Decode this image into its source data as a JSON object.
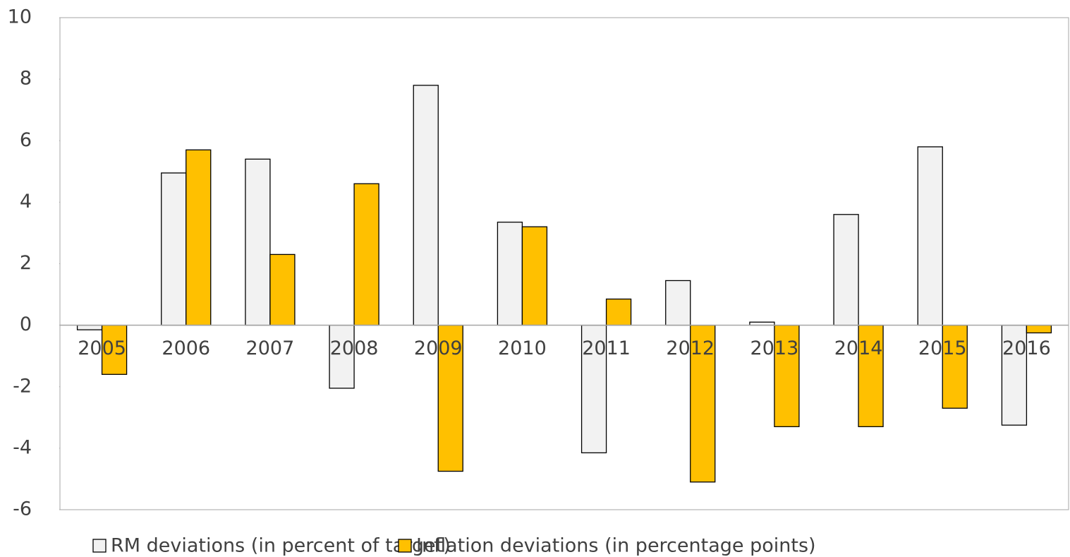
{
  "chart_data": {
    "type": "bar",
    "categories": [
      "2005",
      "2006",
      "2007",
      "2008",
      "2009",
      "2010",
      "2011",
      "2012",
      "2013",
      "2014",
      "2015",
      "2016"
    ],
    "series": [
      {
        "name": "RM deviations (in percent of target)",
        "color": "#f2f2f2",
        "values": [
          -0.15,
          4.95,
          5.4,
          -2.05,
          7.8,
          3.35,
          -4.15,
          1.45,
          0.1,
          3.6,
          5.8,
          -3.25
        ]
      },
      {
        "name": "Inflation deviations (in percentage points)",
        "color": "#ffc000",
        "values": [
          -1.6,
          5.7,
          2.3,
          4.6,
          -4.75,
          3.2,
          0.85,
          -5.1,
          -3.3,
          -3.3,
          -2.7,
          -0.25
        ]
      }
    ],
    "ylim": [
      -6,
      10
    ],
    "yticks": [
      -6,
      -4,
      -2,
      0,
      2,
      4,
      6,
      8,
      10
    ],
    "grid": false
  }
}
